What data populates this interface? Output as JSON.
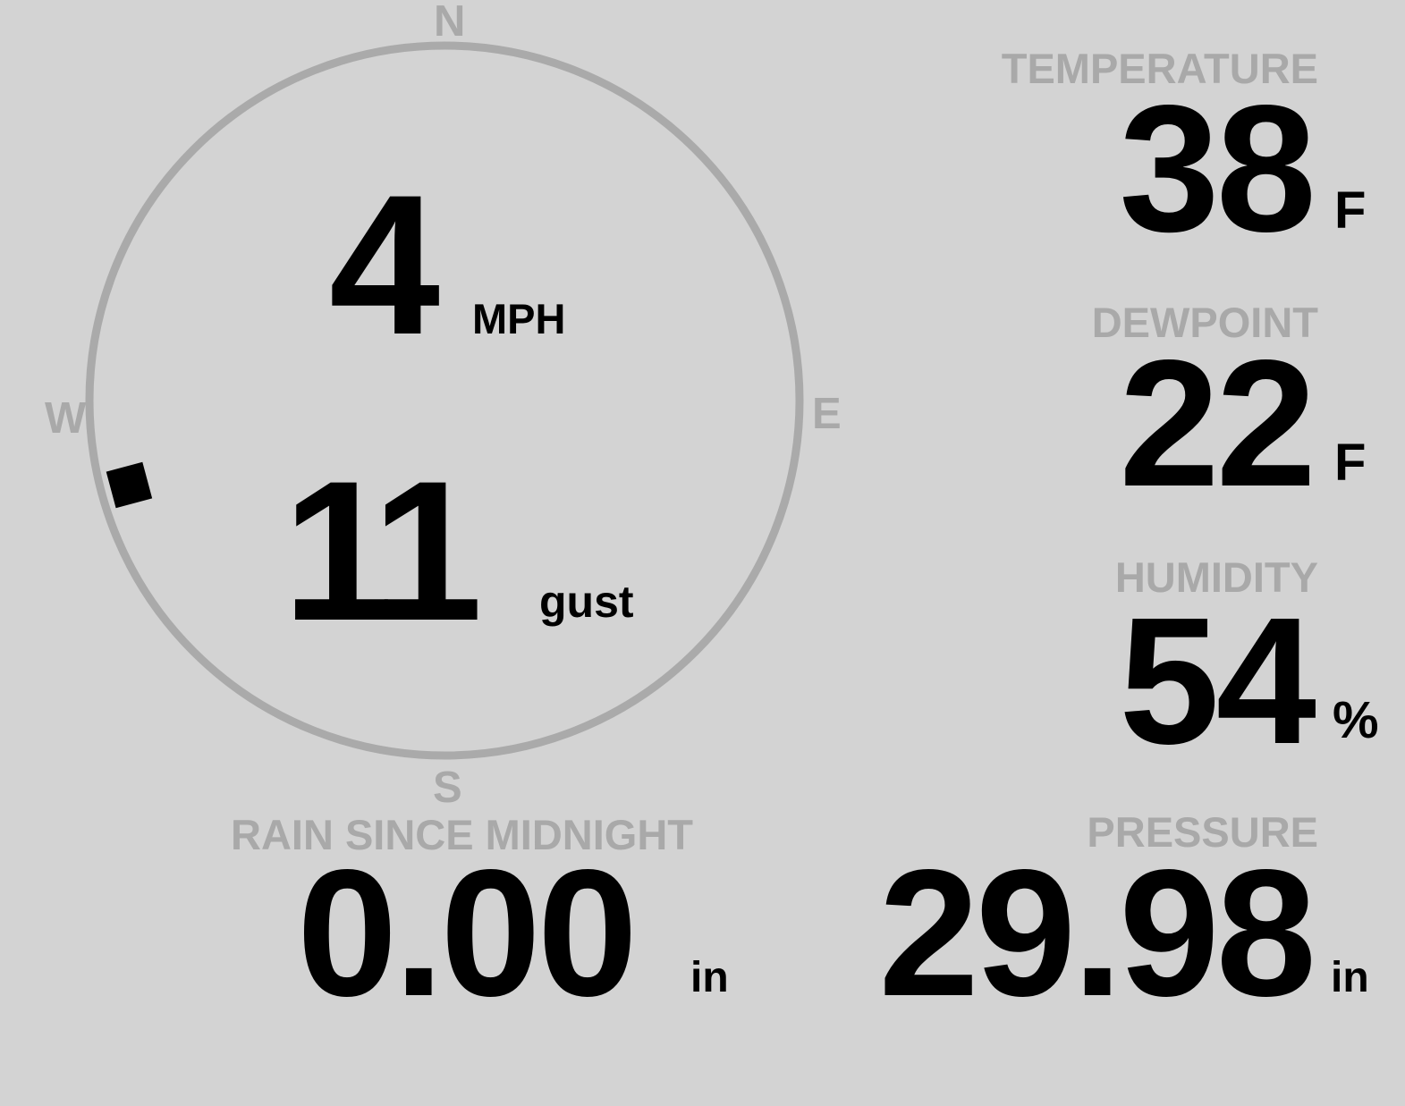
{
  "wind": {
    "speed": "4",
    "speed_unit": "MPH",
    "gust": "11",
    "gust_label": "gust",
    "direction_degrees": 255,
    "compass": {
      "n": "N",
      "e": "E",
      "s": "S",
      "w": "W"
    }
  },
  "temperature": {
    "label": "TEMPERATURE",
    "value": "38",
    "unit": "F"
  },
  "dewpoint": {
    "label": "DEWPOINT",
    "value": "22",
    "unit": "F"
  },
  "humidity": {
    "label": "HUMIDITY",
    "value": "54",
    "unit": "%"
  },
  "rain": {
    "label": "RAIN SINCE MIDNIGHT",
    "value": "0.00",
    "unit": "in"
  },
  "pressure": {
    "label": "PRESSURE",
    "value": "29.98",
    "unit": "in"
  },
  "colors": {
    "background": "#d3d3d3",
    "label": "#a9a9a9",
    "value": "#000000",
    "ring": "#aaaaaa"
  }
}
